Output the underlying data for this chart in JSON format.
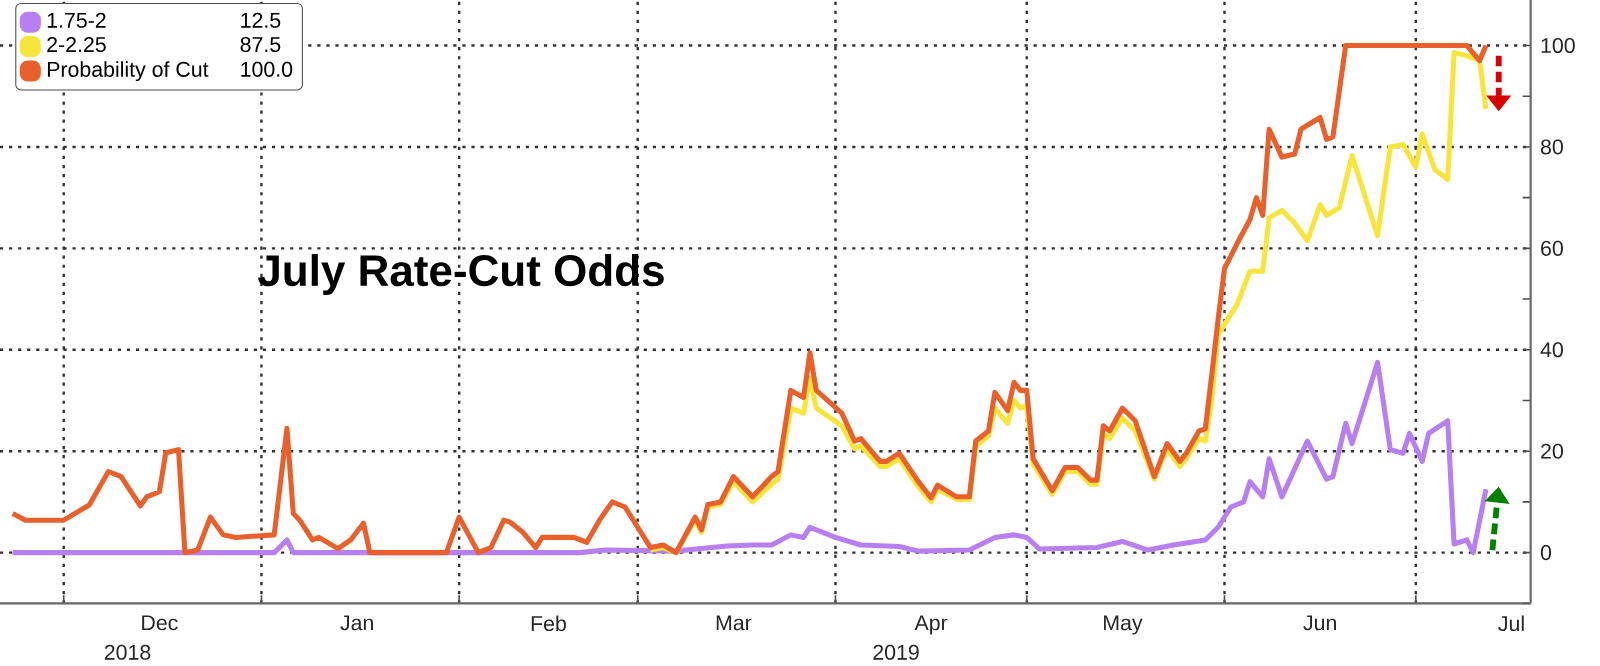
{
  "chart_data": {
    "type": "line",
    "title": "July Rate-Cut Odds",
    "xlim": [
      "2018-11-21",
      "2019-07-19"
    ],
    "ylim": [
      -10,
      109
    ],
    "xticks": [
      {
        "value": "2018-12-01",
        "label": null
      },
      {
        "value": "2019-01-01",
        "label": null
      },
      {
        "value": "2019-02-01",
        "label": null
      },
      {
        "value": "2019-03-01",
        "label": null
      },
      {
        "value": "2019-04-01",
        "label": null
      },
      {
        "value": "2019-05-01",
        "label": null
      },
      {
        "value": "2019-06-01",
        "label": null
      },
      {
        "value": "2019-07-01",
        "label": null
      },
      {
        "value": "2018-12-16",
        "label": "Dec"
      },
      {
        "value": "2019-01-16",
        "label": "Jan"
      },
      {
        "value": "2019-02-15",
        "label": "Feb"
      },
      {
        "value": "2019-03-16",
        "label": "Mar"
      },
      {
        "value": "2019-04-16",
        "label": "Apr"
      },
      {
        "value": "2019-05-16",
        "label": "May"
      },
      {
        "value": "2019-06-16",
        "label": "Jun"
      },
      {
        "value": "2019-07-16",
        "label": "Jul"
      }
    ],
    "yticks": [
      0,
      20,
      40,
      60,
      80,
      100,
      {
        "value": -10,
        "label": null
      },
      {
        "value": 10,
        "label": null
      },
      {
        "value": 30,
        "label": null
      },
      {
        "value": 50,
        "label": null
      },
      {
        "value": 70,
        "label": null
      },
      {
        "value": 90,
        "label": null
      }
    ],
    "grid": true,
    "legend": "top left",
    "annotations": [
      "12.5",
      "87.5",
      "100.0",
      "2018",
      "2019"
    ],
    "series": [
      {
        "name": "1.75-2",
        "color": "#b77ff0",
        "x": [
          "2018-11-23",
          "2019-01-03",
          "2019-01-05",
          "2019-01-06",
          "2019-02-20",
          "2019-02-24",
          "2019-03-07",
          "2019-03-11",
          "2019-03-15",
          "2019-03-19",
          "2019-03-22",
          "2019-03-25",
          "2019-03-27",
          "2019-03-28",
          "2019-04-01",
          "2019-04-05",
          "2019-04-11",
          "2019-04-14",
          "2019-04-22",
          "2019-04-26",
          "2019-04-29",
          "2019-05-01",
          "2019-05-03",
          "2019-05-12",
          "2019-05-16",
          "2019-05-20",
          "2019-05-24",
          "2019-05-29",
          "2019-05-31",
          "2019-06-02",
          "2019-06-04",
          "2019-06-05",
          "2019-06-07",
          "2019-06-08",
          "2019-06-10",
          "2019-06-14",
          "2019-06-17",
          "2019-06-18",
          "2019-06-20",
          "2019-06-21",
          "2019-06-25",
          "2019-06-27",
          "2019-06-29",
          "2019-06-30",
          "2019-07-02",
          "2019-07-03",
          "2019-07-06",
          "2019-07-07",
          "2019-07-09",
          "2019-07-10",
          "2019-07-12"
        ],
        "values": [
          0,
          0,
          2.5,
          0,
          0,
          0.5,
          0.3,
          0.8,
          1.3,
          1.5,
          1.5,
          3.5,
          3,
          5,
          3,
          1.5,
          1.2,
          0.3,
          0.5,
          3,
          3.5,
          3,
          0.7,
          1,
          2.2,
          0.5,
          1.5,
          2.5,
          5,
          9,
          10,
          14,
          11,
          18.5,
          11,
          22,
          14.5,
          15,
          25.5,
          21.5,
          37.5,
          20.3,
          19.6,
          23.5,
          18,
          23.5,
          26,
          1.7,
          2.5,
          0,
          12.5
        ]
      },
      {
        "name": "2-2.25",
        "color": "#f7e43c",
        "x": [
          "2019-03-03",
          "2019-03-05",
          "2019-03-07",
          "2019-03-10",
          "2019-03-11",
          "2019-03-12",
          "2019-03-14",
          "2019-03-16",
          "2019-03-19",
          "2019-03-22",
          "2019-03-23",
          "2019-03-25",
          "2019-03-27",
          "2019-03-28",
          "2019-03-29",
          "2019-04-02",
          "2019-04-04",
          "2019-04-05",
          "2019-04-08",
          "2019-04-09",
          "2019-04-11",
          "2019-04-14",
          "2019-04-16",
          "2019-04-17",
          "2019-04-20",
          "2019-04-22",
          "2019-04-23",
          "2019-04-25",
          "2019-04-26",
          "2019-04-28",
          "2019-04-29",
          "2019-04-30",
          "2019-05-01",
          "2019-05-02",
          "2019-05-05",
          "2019-05-07",
          "2019-05-09",
          "2019-05-11",
          "2019-05-12",
          "2019-05-13",
          "2019-05-14",
          "2019-05-16",
          "2019-05-18",
          "2019-05-21",
          "2019-05-23",
          "2019-05-25",
          "2019-05-26",
          "2019-05-28",
          "2019-05-29",
          "2019-05-30",
          "2019-05-31",
          "2019-06-03",
          "2019-06-05",
          "2019-06-07",
          "2019-06-08",
          "2019-06-10",
          "2019-06-12",
          "2019-06-14",
          "2019-06-16",
          "2019-06-17",
          "2019-06-19",
          "2019-06-21",
          "2019-06-25",
          "2019-06-27",
          "2019-06-29",
          "2019-07-01",
          "2019-07-02",
          "2019-07-04",
          "2019-07-06",
          "2019-07-07",
          "2019-07-09",
          "2019-07-11",
          "2019-07-12"
        ],
        "values": [
          0.5,
          1,
          0,
          6.5,
          4,
          9,
          9.5,
          14,
          10,
          13.5,
          14.5,
          28.5,
          27.5,
          34.5,
          28.5,
          25,
          20.5,
          21,
          17,
          17,
          18.5,
          13,
          10,
          12.5,
          10.5,
          10.5,
          21,
          23,
          28.5,
          25.5,
          30,
          28.5,
          29,
          17.5,
          11.5,
          16,
          16,
          13.5,
          13.5,
          23.5,
          22.5,
          26.5,
          24,
          14.5,
          20.5,
          17,
          18.5,
          22.5,
          22,
          30,
          43,
          49,
          55.5,
          55.5,
          66,
          67.5,
          65,
          61.5,
          68.6,
          66.5,
          68,
          78.3,
          62.5,
          80,
          80.5,
          76,
          82.6,
          75.5,
          73.6,
          98.6,
          98,
          97,
          87.5
        ]
      },
      {
        "name": "Probability of Cut",
        "color": "#e8602c",
        "x": [
          "2018-11-23",
          "2018-11-25",
          "2018-12-01",
          "2018-12-05",
          "2018-12-08",
          "2018-12-10",
          "2018-12-13",
          "2018-12-14",
          "2018-12-16",
          "2018-12-17",
          "2018-12-19",
          "2018-12-20",
          "2018-12-22",
          "2018-12-24",
          "2018-12-26",
          "2018-12-28",
          "2019-01-03",
          "2019-01-05",
          "2019-01-06",
          "2019-01-07",
          "2019-01-09",
          "2019-01-10",
          "2019-01-13",
          "2019-01-15",
          "2019-01-17",
          "2019-01-18",
          "2019-01-30",
          "2019-02-01",
          "2019-02-04",
          "2019-02-06",
          "2019-02-08",
          "2019-02-09",
          "2019-02-11",
          "2019-02-13",
          "2019-02-14",
          "2019-02-19",
          "2019-02-21",
          "2019-02-23",
          "2019-02-25",
          "2019-02-27",
          "2019-03-03",
          "2019-03-05",
          "2019-03-07",
          "2019-03-10",
          "2019-03-11",
          "2019-03-12",
          "2019-03-14",
          "2019-03-16",
          "2019-03-19",
          "2019-03-22",
          "2019-03-23",
          "2019-03-25",
          "2019-03-27",
          "2019-03-28",
          "2019-03-29",
          "2019-04-02",
          "2019-04-04",
          "2019-04-05",
          "2019-04-08",
          "2019-04-09",
          "2019-04-11",
          "2019-04-14",
          "2019-04-16",
          "2019-04-17",
          "2019-04-20",
          "2019-04-22",
          "2019-04-23",
          "2019-04-25",
          "2019-04-26",
          "2019-04-28",
          "2019-04-29",
          "2019-04-30",
          "2019-05-01",
          "2019-05-02",
          "2019-05-05",
          "2019-05-07",
          "2019-05-09",
          "2019-05-11",
          "2019-05-12",
          "2019-05-13",
          "2019-05-14",
          "2019-05-16",
          "2019-05-18",
          "2019-05-21",
          "2019-05-23",
          "2019-05-25",
          "2019-05-26",
          "2019-05-28",
          "2019-05-29",
          "2019-05-30",
          "2019-05-31",
          "2019-06-01",
          "2019-06-03",
          "2019-06-05",
          "2019-06-06",
          "2019-06-07",
          "2019-06-08",
          "2019-06-10",
          "2019-06-12",
          "2019-06-13",
          "2019-06-16",
          "2019-06-17",
          "2019-06-18",
          "2019-06-20",
          "2019-07-09",
          "2019-07-11",
          "2019-07-12"
        ],
        "values": [
          7.7,
          6.4,
          6.4,
          9.4,
          16,
          15,
          9.2,
          11,
          12,
          19.7,
          20.3,
          0,
          0.5,
          7,
          3.5,
          3,
          3.5,
          24.5,
          7.7,
          6.4,
          2.5,
          3,
          0.8,
          2.5,
          5.8,
          0,
          0,
          7,
          0,
          1,
          6.4,
          6,
          4,
          1,
          3,
          3,
          2,
          6.4,
          10,
          9,
          1,
          1.5,
          0,
          7,
          4.5,
          9.5,
          10,
          15,
          11,
          15,
          16,
          32,
          30.6,
          39.4,
          32,
          27.5,
          22,
          22.5,
          18,
          18,
          19.6,
          14,
          10.8,
          13.3,
          11,
          11,
          22,
          24,
          31.6,
          28,
          33.6,
          32,
          32,
          18.5,
          12.2,
          16.8,
          16.8,
          14.3,
          14.3,
          25,
          24,
          28.5,
          26,
          15,
          21.5,
          18,
          19.6,
          24,
          24.4,
          35,
          46,
          56,
          61,
          65.7,
          70,
          66.5,
          83.5,
          78,
          78.6,
          83.5,
          85.8,
          81.5,
          82,
          100,
          100,
          97,
          100
        ]
      }
    ]
  }
}
